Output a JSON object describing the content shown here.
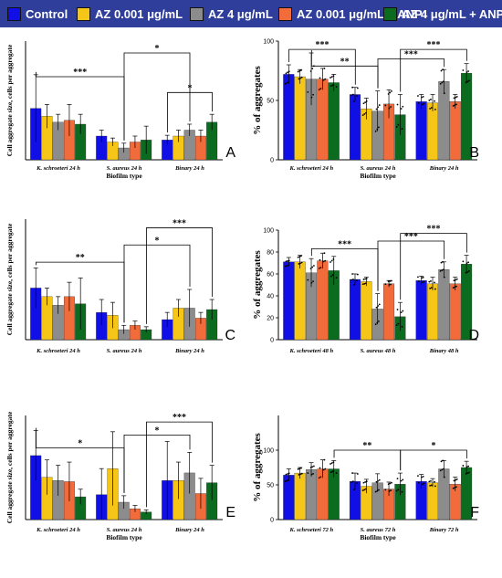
{
  "legend": [
    {
      "label": "Control",
      "color": "#1010e6"
    },
    {
      "label": "AZ 0.001 μg/mL",
      "color": "#f5c518"
    },
    {
      "label": "AZ 4 μg/mL",
      "color": "#8c8c8c"
    },
    {
      "label": "AZ 0.001 μg/mL + ANP",
      "color": "#f26b3a"
    },
    {
      "label": "AZ 4 μg/mL + ANP",
      "color": "#0b6b1f"
    }
  ],
  "chart_data": [
    {
      "panel": "A",
      "type": "bar",
      "xlabel": "Biofilm type",
      "ylabel": "Cell aggregate size, cells per aggregate",
      "yticks": [],
      "ylim": [
        0,
        30
      ],
      "categories": [
        "K. schroeteri 24 h",
        "S. aureus 24 h",
        "Binary 24 h"
      ],
      "series": [
        {
          "name": "Control",
          "values": [
            13,
            6,
            5
          ],
          "errors": [
            8.5,
            1.5,
            1.2
          ]
        },
        {
          "name": "AZ 0.001 μg/mL",
          "values": [
            11,
            4.5,
            6
          ],
          "errors": [
            3,
            1,
            1.5
          ]
        },
        {
          "name": "AZ 4 μg/mL",
          "values": [
            9.5,
            3,
            7.5
          ],
          "errors": [
            2,
            1.2,
            1.5
          ]
        },
        {
          "name": "AZ 0.001 μg/mL + ANP",
          "values": [
            10,
            4.5,
            6
          ],
          "errors": [
            4,
            1.5,
            1.5
          ]
        },
        {
          "name": "AZ 4 μg/mL + ANP",
          "values": [
            9,
            5,
            9.5
          ],
          "errors": [
            2.5,
            3.5,
            2
          ]
        }
      ],
      "significance": [
        {
          "label": "***",
          "from": [
            0,
            0
          ],
          "to": [
            1,
            2
          ],
          "level": 21
        },
        {
          "label": "*",
          "from": [
            1,
            2
          ],
          "to": [
            2,
            2
          ],
          "level": 27
        },
        {
          "label": "*",
          "from": [
            2,
            0
          ],
          "to": [
            2,
            4
          ],
          "level": 17
        }
      ]
    },
    {
      "panel": "B",
      "type": "bar",
      "xlabel": "Biofilm type",
      "ylabel": "% of aggregates",
      "yticks": [
        0,
        50,
        100
      ],
      "ylim": [
        0,
        100
      ],
      "categories": [
        "K. schroeteri 24 h",
        "S. aureus 24 h",
        "Binary 24 h"
      ],
      "series": [
        {
          "name": "Control",
          "values": [
            72,
            55,
            49
          ],
          "errors": [
            8,
            6,
            6
          ]
        },
        {
          "name": "AZ 0.001 μg/mL",
          "values": [
            70,
            43,
            48
          ],
          "errors": [
            6,
            9,
            7
          ]
        },
        {
          "name": "AZ 4 μg/mL",
          "values": [
            68,
            41,
            66
          ],
          "errors": [
            22,
            17,
            10
          ]
        },
        {
          "name": "AZ 0.001 μg/mL + ANP",
          "values": [
            68,
            47,
            49
          ],
          "errors": [
            9,
            12,
            6
          ]
        },
        {
          "name": "AZ 4 μg/mL + ANP",
          "values": [
            65,
            38,
            73
          ],
          "errors": [
            7,
            17,
            8
          ]
        }
      ],
      "significance": [
        {
          "label": "***",
          "from": [
            0,
            0
          ],
          "to": [
            1,
            0
          ],
          "level": 93
        },
        {
          "label": "**",
          "from": [
            0,
            2
          ],
          "to": [
            1,
            2
          ],
          "level": 79
        },
        {
          "label": "***",
          "from": [
            1,
            2
          ],
          "to": [
            2,
            2
          ],
          "level": 85
        },
        {
          "label": "***",
          "from": [
            1,
            4
          ],
          "to": [
            2,
            4
          ],
          "level": 93
        }
      ]
    },
    {
      "panel": "C",
      "type": "bar",
      "xlabel": "",
      "ylabel": "Cell aggregate size, cells per aggregate",
      "yticks": [],
      "ylim": [
        0,
        42
      ],
      "categories": [
        "K. schroeteri 24 h",
        "S. aureus 24 h",
        "Binary 24 h"
      ],
      "series": [
        {
          "name": "Control",
          "values": [
            18,
            9.5,
            7
          ],
          "errors": [
            7,
            4.5,
            2.5
          ]
        },
        {
          "name": "AZ 0.001 μg/mL",
          "values": [
            15,
            8.5,
            11
          ],
          "errors": [
            3,
            4.5,
            3
          ]
        },
        {
          "name": "AZ 4 μg/mL",
          "values": [
            12,
            3.5,
            11
          ],
          "errors": [
            3,
            1.5,
            6.5
          ]
        },
        {
          "name": "AZ 0.001 μg/mL + ANP",
          "values": [
            15,
            5,
            7.5
          ],
          "errors": [
            5,
            1.5,
            2
          ]
        },
        {
          "name": "AZ 4 μg/mL + ANP",
          "values": [
            12.5,
            3.5,
            10.5
          ],
          "errors": [
            9,
            1,
            3.5
          ]
        }
      ],
      "significance": [
        {
          "label": "**",
          "from": [
            0,
            0
          ],
          "to": [
            1,
            2
          ],
          "level": 27
        },
        {
          "label": "*",
          "from": [
            1,
            2
          ],
          "to": [
            2,
            2
          ],
          "level": 33
        },
        {
          "label": "***",
          "from": [
            1,
            4
          ],
          "to": [
            2,
            4
          ],
          "level": 39
        }
      ]
    },
    {
      "panel": "D",
      "type": "bar",
      "xlabel": "",
      "ylabel": "% of aggregates",
      "yticks": [
        0,
        20,
        40,
        60,
        80,
        100
      ],
      "ylim": [
        0,
        100
      ],
      "categories": [
        "K. schroeteri 48 h",
        "S. aureus 48 h",
        "Binary 48 h"
      ],
      "series": [
        {
          "name": "Control",
          "values": [
            71,
            55,
            54
          ],
          "errors": [
            4,
            5,
            4
          ]
        },
        {
          "name": "AZ 0.001 μg/mL",
          "values": [
            71,
            53,
            51
          ],
          "errors": [
            6,
            4,
            6
          ]
        },
        {
          "name": "AZ 4 μg/mL",
          "values": [
            61,
            28,
            64
          ],
          "errors": [
            13,
            14,
            7
          ]
        },
        {
          "name": "AZ 0.001 μg/mL + ANP",
          "values": [
            72,
            51,
            51
          ],
          "errors": [
            7,
            3,
            6
          ]
        },
        {
          "name": "AZ 4 μg/mL + ANP",
          "values": [
            63,
            21,
            69
          ],
          "errors": [
            13,
            13,
            8
          ]
        }
      ],
      "significance": [
        {
          "label": "***",
          "from": [
            0,
            2
          ],
          "to": [
            1,
            2
          ],
          "level": 83
        },
        {
          "label": "***",
          "from": [
            1,
            2
          ],
          "to": [
            2,
            2
          ],
          "level": 90
        },
        {
          "label": "***",
          "from": [
            1,
            4
          ],
          "to": [
            2,
            4
          ],
          "level": 97
        }
      ]
    },
    {
      "panel": "E",
      "type": "bar",
      "xlabel": "Biofilm type",
      "ylabel": "Cell aggregate size, cells per aggregate",
      "yticks": [],
      "ylim": [
        0,
        48
      ],
      "categories": [
        "K. schroeteri 24 h",
        "S. aureus 24 h",
        "Binary 24 h"
      ],
      "series": [
        {
          "name": "Control",
          "values": [
            29.5,
            11.5,
            18
          ],
          "errors": [
            11.5,
            12,
            18
          ]
        },
        {
          "name": "AZ 0.001 μg/mL",
          "values": [
            19.5,
            23.5,
            18
          ],
          "errors": [
            8,
            17,
            8.5
          ]
        },
        {
          "name": "AZ 4 μg/mL",
          "values": [
            18,
            8,
            21.5
          ],
          "errors": [
            7,
            3,
            9.5
          ]
        },
        {
          "name": "AZ 0.001 μg/mL + ANP",
          "values": [
            17.5,
            5,
            12
          ],
          "errors": [
            9,
            1.5,
            7
          ]
        },
        {
          "name": "AZ 4 μg/mL + ANP",
          "values": [
            10.5,
            3.5,
            17
          ],
          "errors": [
            3.5,
            1,
            8
          ]
        }
      ],
      "significance": [
        {
          "label": "*",
          "from": [
            0,
            0
          ],
          "to": [
            1,
            2
          ],
          "level": 33
        },
        {
          "label": "*",
          "from": [
            1,
            2
          ],
          "to": [
            2,
            2
          ],
          "level": 39
        },
        {
          "label": "***",
          "from": [
            1,
            4
          ],
          "to": [
            2,
            4
          ],
          "level": 45
        }
      ]
    },
    {
      "panel": "F",
      "type": "bar",
      "xlabel": "Biofilm type",
      "ylabel": "% of aggregates",
      "yticks": [
        0,
        50,
        100
      ],
      "ylim": [
        0,
        150
      ],
      "categories": [
        "K. schroeteri 72 h",
        "S. aureus 72 h",
        "Binary 72 h"
      ],
      "series": [
        {
          "name": "Control",
          "values": [
            64,
            55,
            55
          ],
          "errors": [
            9,
            12,
            10
          ]
        },
        {
          "name": "AZ 0.001 μg/mL",
          "values": [
            67,
            48,
            53
          ],
          "errors": [
            8,
            10,
            6
          ]
        },
        {
          "name": "AZ 4 μg/mL",
          "values": [
            72,
            53,
            73
          ],
          "errors": [
            10,
            13,
            12
          ]
        },
        {
          "name": "AZ 0.001 μg/mL + ANP",
          "values": [
            73,
            44,
            51
          ],
          "errors": [
            13,
            10,
            10
          ]
        },
        {
          "name": "AZ 4 μg/mL + ANP",
          "values": [
            73,
            51,
            75
          ],
          "errors": [
            12,
            16,
            9
          ]
        }
      ],
      "significance": [
        {
          "label": "**",
          "from": [
            0,
            4
          ],
          "to": [
            1,
            4
          ],
          "level": 100
        },
        {
          "label": "*",
          "from": [
            1,
            4
          ],
          "to": [
            2,
            4
          ],
          "level": 100
        }
      ]
    }
  ]
}
